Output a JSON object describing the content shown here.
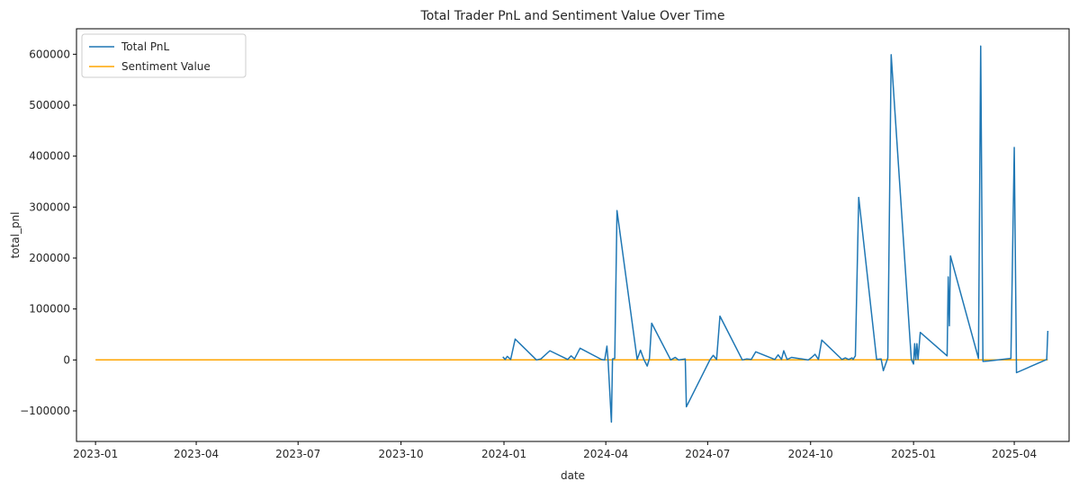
{
  "chart_data": {
    "type": "line",
    "title": "Total Trader PnL and Sentiment Value Over Time",
    "xlabel": "date",
    "ylabel": "total_pnl",
    "x_type": "date",
    "xlim": [
      "2022-12-15",
      "2025-05-20"
    ],
    "ylim": [
      -160000,
      650000
    ],
    "x_ticks": [
      "2023-01",
      "2023-04",
      "2023-07",
      "2023-10",
      "2024-01",
      "2024-04",
      "2024-07",
      "2024-10",
      "2025-01",
      "2025-04"
    ],
    "x_tick_dates": [
      "2023-01-01",
      "2023-04-01",
      "2023-07-01",
      "2023-10-01",
      "2024-01-01",
      "2024-04-01",
      "2024-07-01",
      "2024-10-01",
      "2025-01-01",
      "2025-04-01"
    ],
    "y_ticks": [
      -100000,
      0,
      100000,
      200000,
      300000,
      400000,
      500000,
      600000
    ],
    "y_tick_labels": [
      "−100000",
      "0",
      "100000",
      "200000",
      "300000",
      "400000",
      "500000",
      "600000"
    ],
    "grid": false,
    "legend": "upper-left",
    "series": [
      {
        "name": "Total PnL",
        "color": "#1f77b4",
        "points": [
          [
            "2023-12-31",
            6000
          ],
          [
            "2024-01-02",
            1000
          ],
          [
            "2024-01-04",
            7000
          ],
          [
            "2024-01-07",
            1000
          ],
          [
            "2024-01-11",
            41000
          ],
          [
            "2024-01-30",
            0
          ],
          [
            "2024-02-03",
            2000
          ],
          [
            "2024-02-11",
            18000
          ],
          [
            "2024-02-27",
            1000
          ],
          [
            "2024-03-01",
            8000
          ],
          [
            "2024-03-04",
            2000
          ],
          [
            "2024-03-09",
            23000
          ],
          [
            "2024-03-28",
            1000
          ],
          [
            "2024-03-31",
            0
          ],
          [
            "2024-04-02",
            27000
          ],
          [
            "2024-04-03",
            0
          ],
          [
            "2024-04-06",
            -122000
          ],
          [
            "2024-04-07",
            2000
          ],
          [
            "2024-04-09",
            3000
          ],
          [
            "2024-04-11",
            293000
          ],
          [
            "2024-04-29",
            1000
          ],
          [
            "2024-05-02",
            19000
          ],
          [
            "2024-05-05",
            1000
          ],
          [
            "2024-05-08",
            -12000
          ],
          [
            "2024-05-10",
            3000
          ],
          [
            "2024-05-12",
            72000
          ],
          [
            "2024-05-29",
            0
          ],
          [
            "2024-06-02",
            5000
          ],
          [
            "2024-06-05",
            0
          ],
          [
            "2024-06-11",
            2000
          ],
          [
            "2024-06-12",
            -92000
          ],
          [
            "2024-07-03",
            0
          ],
          [
            "2024-07-06",
            9000
          ],
          [
            "2024-07-09",
            1000
          ],
          [
            "2024-07-12",
            86000
          ],
          [
            "2024-08-01",
            0
          ],
          [
            "2024-08-05",
            2000
          ],
          [
            "2024-08-09",
            1000
          ],
          [
            "2024-08-13",
            16000
          ],
          [
            "2024-08-30",
            1000
          ],
          [
            "2024-09-02",
            10000
          ],
          [
            "2024-09-05",
            1000
          ],
          [
            "2024-09-07",
            18000
          ],
          [
            "2024-09-10",
            1000
          ],
          [
            "2024-09-14",
            5000
          ],
          [
            "2024-09-29",
            0
          ],
          [
            "2024-10-02",
            5000
          ],
          [
            "2024-10-05",
            11000
          ],
          [
            "2024-10-08",
            1000
          ],
          [
            "2024-10-11",
            39000
          ],
          [
            "2024-10-29",
            1000
          ],
          [
            "2024-11-01",
            4000
          ],
          [
            "2024-11-04",
            1000
          ],
          [
            "2024-11-07",
            4000
          ],
          [
            "2024-11-08",
            1000
          ],
          [
            "2024-11-10",
            8000
          ],
          [
            "2024-11-13",
            319000
          ],
          [
            "2024-11-29",
            1000
          ],
          [
            "2024-12-03",
            2000
          ],
          [
            "2024-12-05",
            -21000
          ],
          [
            "2024-12-09",
            4000
          ],
          [
            "2024-12-12",
            599000
          ],
          [
            "2024-12-30",
            1000
          ],
          [
            "2025-01-01",
            -8000
          ],
          [
            "2025-01-02",
            32000
          ],
          [
            "2025-01-03",
            1000
          ],
          [
            "2025-01-04",
            32000
          ],
          [
            "2025-01-05",
            1000
          ],
          [
            "2025-01-07",
            54000
          ],
          [
            "2025-01-31",
            8000
          ],
          [
            "2025-02-01",
            163000
          ],
          [
            "2025-02-02",
            67000
          ],
          [
            "2025-02-03",
            204000
          ],
          [
            "2025-02-28",
            3000
          ],
          [
            "2025-03-02",
            616000
          ],
          [
            "2025-03-04",
            -3000
          ],
          [
            "2025-03-09",
            -2000
          ],
          [
            "2025-03-29",
            3000
          ],
          [
            "2025-04-01",
            417000
          ],
          [
            "2025-04-03",
            -25000
          ],
          [
            "2025-04-30",
            1000
          ],
          [
            "2025-05-01",
            57000
          ]
        ]
      },
      {
        "name": "Sentiment Value",
        "color": "#ffa500",
        "points": [
          [
            "2023-01-01",
            50
          ],
          [
            "2025-05-01",
            40
          ]
        ]
      }
    ]
  }
}
